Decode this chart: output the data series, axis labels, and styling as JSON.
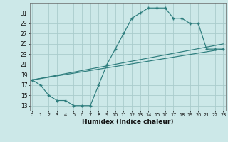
{
  "xlabel": "Humidex (Indice chaleur)",
  "bg_color": "#cce8e8",
  "grid_color": "#aacccc",
  "line_color": "#2d7d7d",
  "curve_x": [
    0,
    1,
    2,
    3,
    4,
    5,
    6,
    7,
    8,
    9,
    10,
    11,
    12,
    13,
    14,
    15,
    16,
    17,
    18,
    19,
    20,
    21,
    22,
    23
  ],
  "curve_y": [
    18,
    17,
    15,
    14,
    14,
    13,
    13,
    13,
    17,
    21,
    24,
    27,
    30,
    31,
    32,
    32,
    32,
    30,
    30,
    29,
    29,
    24,
    24,
    24
  ],
  "line1_x": [
    0,
    23
  ],
  "line1_y": [
    18,
    25
  ],
  "line2_x": [
    0,
    23
  ],
  "line2_y": [
    18,
    24
  ],
  "ylim": [
    12,
    33
  ],
  "xlim": [
    -0.3,
    23.3
  ],
  "yticks": [
    13,
    15,
    17,
    19,
    21,
    23,
    25,
    27,
    29,
    31
  ],
  "xticks": [
    0,
    1,
    2,
    3,
    4,
    5,
    6,
    7,
    8,
    9,
    10,
    11,
    12,
    13,
    14,
    15,
    16,
    17,
    18,
    19,
    20,
    21,
    22,
    23
  ],
  "ytick_fontsize": 5.5,
  "xtick_fontsize": 4.8,
  "xlabel_fontsize": 6.5
}
